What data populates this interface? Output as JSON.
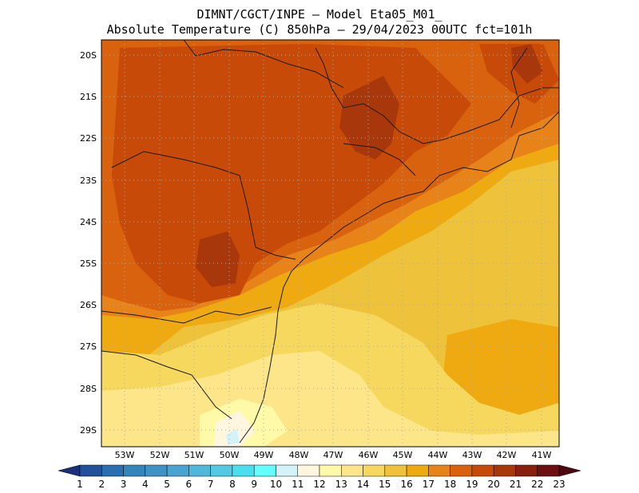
{
  "header": {
    "line1": "DIMNT/CGCT/INPE –  Model Eta05_M01_",
    "line2": "Absolute Temperature (C) 850hPa –  29/04/2023 00UTC fct=101h"
  },
  "map": {
    "lat_labels": [
      "20S",
      "21S",
      "22S",
      "23S",
      "24S",
      "25S",
      "26S",
      "27S",
      "28S",
      "29S"
    ],
    "lon_labels": [
      "53W",
      "52W",
      "51W",
      "50W",
      "49W",
      "48W",
      "47W",
      "46W",
      "45W",
      "44W",
      "43W",
      "42W",
      "41W"
    ],
    "grid": "dotted"
  },
  "colorbar": {
    "labels": [
      "1",
      "2",
      "3",
      "4",
      "5",
      "6",
      "7",
      "8",
      "9",
      "10",
      "11",
      "12",
      "13",
      "14",
      "15",
      "16",
      "17",
      "18",
      "19",
      "20",
      "21",
      "22",
      "23"
    ],
    "colors": [
      "#1c2f7a",
      "#22509a",
      "#2a6fb0",
      "#3585bd",
      "#3d93c3",
      "#46a6d0",
      "#4fb9dc",
      "#53c9e4",
      "#4bdfee",
      "#63ffff",
      "#d4f3f8",
      "#fff6e0",
      "#fffaa8",
      "#fde68a",
      "#f7d85e",
      "#efc23c",
      "#eeaa10",
      "#e8831a",
      "#d9620e",
      "#c84a08",
      "#a8380c",
      "#8b1f0f",
      "#6d0e12",
      "#4c0a10"
    ]
  },
  "colors": {
    "temp_21": "#a8380c",
    "temp_20": "#c84a08",
    "temp_19": "#d9620e",
    "temp_18": "#e8831a",
    "temp_17": "#eeaa10",
    "temp_16": "#efc23c",
    "temp_15": "#f7d85e",
    "temp_14": "#fde68a",
    "temp_13": "#fffaa8",
    "temp_12": "#fff6e0",
    "temp_11": "#d4f3f8"
  }
}
